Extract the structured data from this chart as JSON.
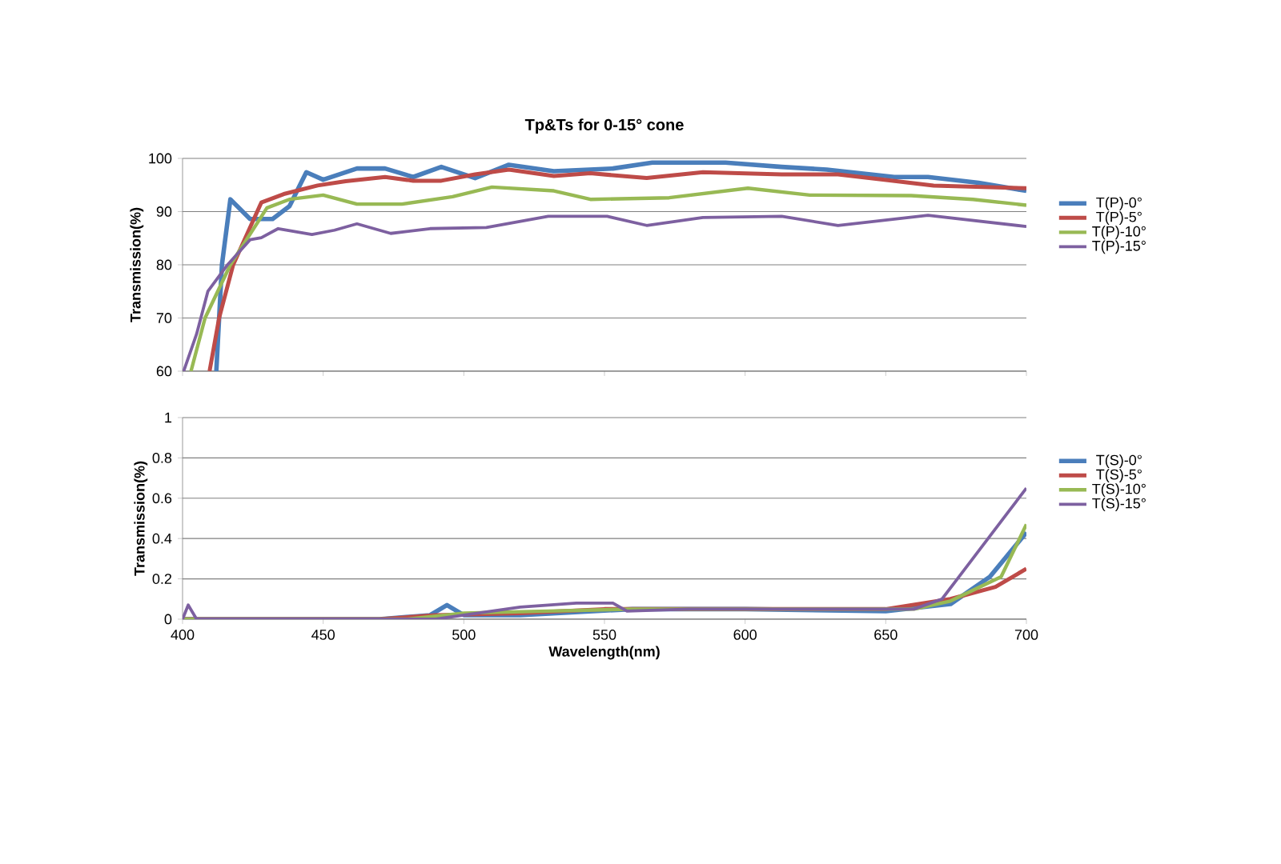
{
  "chart_data": [
    {
      "type": "line",
      "title": "Tp&Ts for 0-15° cone",
      "ylabel": "Transmission(%)",
      "xlim": [
        400,
        700
      ],
      "ylim": [
        60,
        100
      ],
      "xticks": [
        400,
        450,
        500,
        550,
        600,
        650,
        700
      ],
      "yticks": [
        60,
        70,
        80,
        90,
        100
      ],
      "tick_labels": "y",
      "grid": "y",
      "legend": "right",
      "marker": "none",
      "line_style": "solid",
      "series": [
        {
          "name": "T(P)-0°",
          "color": "#4a7ebb",
          "x": [
            412,
            414,
            417,
            424,
            432,
            438,
            444,
            450,
            462,
            472,
            482,
            492,
            504,
            516,
            532,
            553,
            567,
            593,
            613,
            629,
            653,
            665,
            683,
            700
          ],
          "values": [
            60,
            80,
            92.3,
            88.6,
            88.6,
            91,
            97.4,
            96,
            98.1,
            98.1,
            96.5,
            98.4,
            96.3,
            98.8,
            97.6,
            98.1,
            99.2,
            99.2,
            98.4,
            97.9,
            96.5,
            96.5,
            95.4,
            93.9
          ]
        },
        {
          "name": "T(P)-5°",
          "color": "#be4b48",
          "x": [
            409.6,
            413,
            418,
            428,
            436,
            448,
            458,
            472,
            482,
            492,
            504,
            516,
            532,
            545,
            565,
            585,
            613,
            633,
            649,
            667,
            700
          ],
          "values": [
            60,
            70,
            80,
            91.7,
            93.3,
            94.9,
            95.7,
            96.5,
            95.8,
            95.8,
            97,
            97.9,
            96.7,
            97.2,
            96.3,
            97.4,
            97,
            97,
            96,
            94.9,
            94.4
          ]
        },
        {
          "name": "T(P)-10°",
          "color": "#98b954",
          "x": [
            403,
            408,
            417,
            430,
            438,
            450,
            462,
            478,
            496,
            510,
            532,
            545,
            573,
            601,
            623,
            659,
            681,
            700
          ],
          "values": [
            60,
            70,
            80,
            90.7,
            92.3,
            93.1,
            91.4,
            91.4,
            92.8,
            94.6,
            93.9,
            92.3,
            92.6,
            94.4,
            93.1,
            93,
            92.3,
            91.2
          ]
        },
        {
          "name": "T(P)-15°",
          "color": "#7d60a0",
          "x": [
            400.4,
            405,
            409,
            416,
            424,
            428,
            434,
            446,
            454,
            462,
            474,
            488,
            508,
            530,
            551,
            565,
            585,
            613,
            633,
            665,
            700
          ],
          "values": [
            60,
            67,
            75,
            80,
            84.7,
            85.1,
            86.8,
            85.7,
            86.5,
            87.7,
            85.9,
            86.8,
            87,
            89.1,
            89.1,
            87.4,
            88.9,
            89.1,
            87.4,
            89.3,
            87.2
          ]
        }
      ]
    },
    {
      "type": "line",
      "xlabel": "Wavelength(nm)",
      "ylabel": "Transmission(%)",
      "xlim": [
        400,
        700
      ],
      "ylim": [
        0,
        1
      ],
      "xticks": [
        400,
        450,
        500,
        550,
        600,
        650,
        700
      ],
      "yticks": [
        0,
        0.2,
        0.4,
        0.6,
        0.8,
        1
      ],
      "grid": "y",
      "legend": "right",
      "marker": "none",
      "line_style": "solid",
      "series": [
        {
          "name": "T(S)-0°",
          "color": "#4a7ebb",
          "x": [
            400,
            470,
            488,
            494,
            500,
            520,
            560,
            600,
            650,
            673,
            687,
            700
          ],
          "values": [
            0,
            0,
            0.02,
            0.07,
            0.02,
            0.02,
            0.05,
            0.05,
            0.04,
            0.075,
            0.21,
            0.43
          ]
        },
        {
          "name": "T(S)-5°",
          "color": "#be4b48",
          "x": [
            400,
            470,
            490,
            520,
            550,
            600,
            650,
            673,
            689,
            700
          ],
          "values": [
            0,
            0,
            0.02,
            0.03,
            0.05,
            0.05,
            0.05,
            0.1,
            0.16,
            0.25
          ]
        },
        {
          "name": "T(S)-10°",
          "color": "#98b954",
          "x": [
            400,
            480,
            500,
            530,
            560,
            600,
            660,
            673,
            691,
            700
          ],
          "values": [
            0,
            0,
            0.03,
            0.04,
            0.05,
            0.05,
            0.05,
            0.09,
            0.21,
            0.47
          ]
        },
        {
          "name": "T(S)-15°",
          "color": "#7d60a0",
          "x": [
            400,
            402,
            405,
            490,
            500,
            520,
            540,
            553,
            558,
            580,
            660,
            670,
            676,
            688,
            694,
            700
          ],
          "values": [
            0,
            0.07,
            0,
            0,
            0.02,
            0.06,
            0.08,
            0.08,
            0.04,
            0.05,
            0.05,
            0.1,
            0.21,
            0.43,
            0.54,
            0.65
          ]
        }
      ]
    }
  ]
}
